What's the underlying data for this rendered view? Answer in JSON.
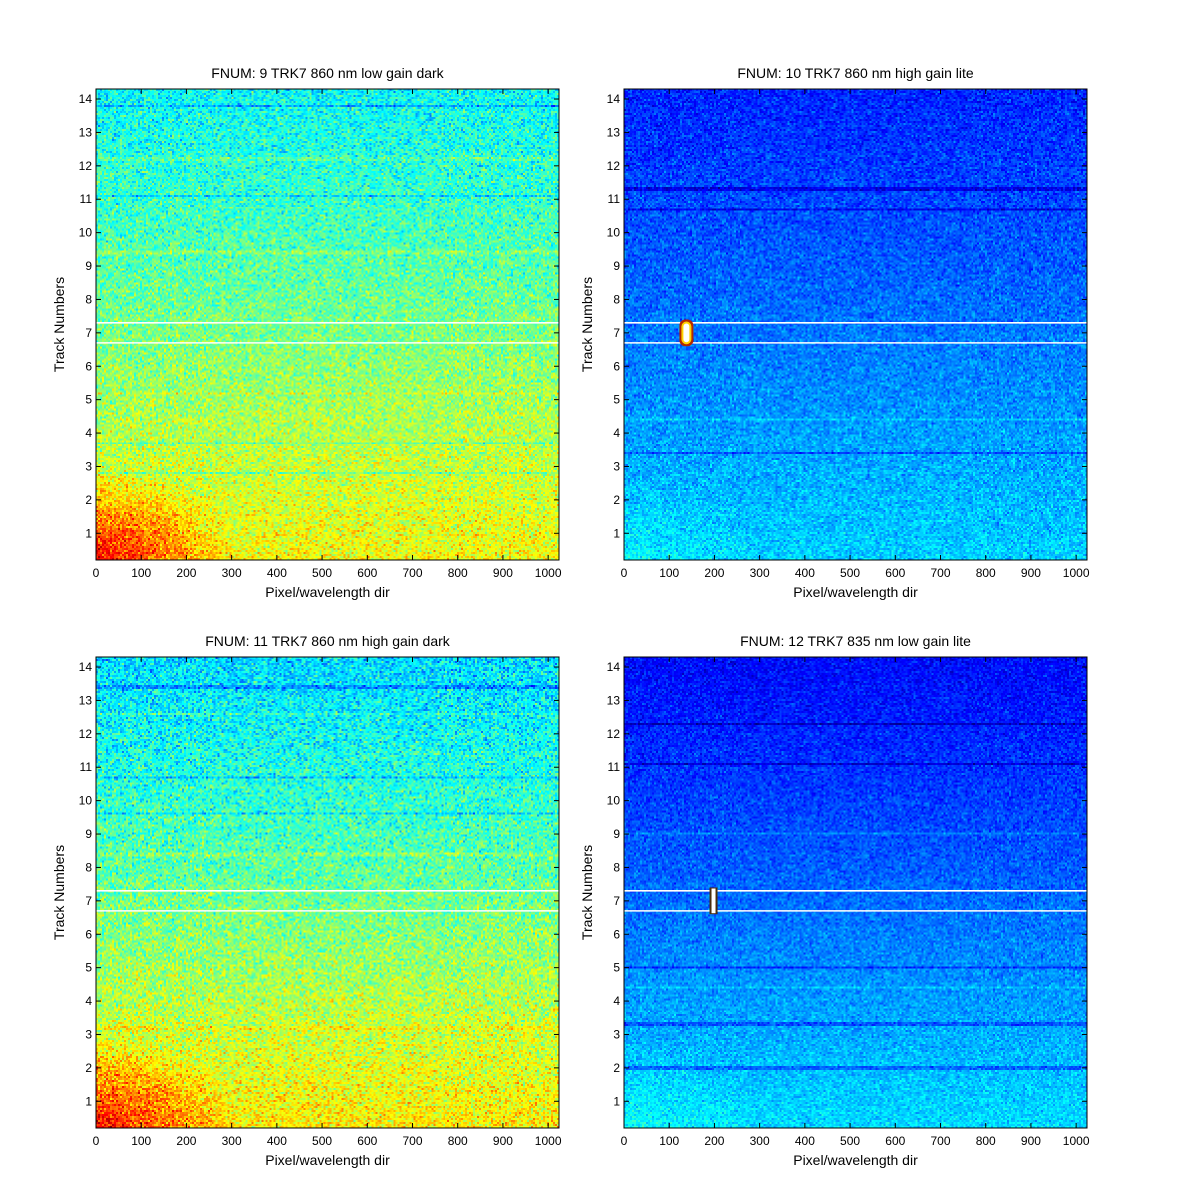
{
  "figure": {
    "background": "#ffffff",
    "colormap": "jet"
  },
  "chart_data": [
    {
      "type": "heatmap",
      "title": "FNUM: 9 TRK7 860 nm low gain dark",
      "xlabel": "Pixel/wavelength dir",
      "ylabel": "Track Numbers",
      "xlim": [
        0,
        1024
      ],
      "ylim": [
        0.2,
        14.3
      ],
      "xticks": [
        0,
        100,
        200,
        300,
        400,
        500,
        600,
        700,
        800,
        900,
        1000
      ],
      "yticks": [
        1,
        2,
        3,
        4,
        5,
        6,
        7,
        8,
        9,
        10,
        11,
        12,
        13,
        14
      ],
      "intensity_gradient": {
        "top": 0.38,
        "bottom": 0.62,
        "bottom_left_corner": 0.82
      },
      "noise_level": 0.07,
      "dark_streaks_at_track": [
        13.8,
        11.1,
        3.7,
        2.8
      ],
      "bright_streaks_at_track": [
        12.2,
        9.4,
        5.2
      ],
      "white_band_edges": [
        6.7,
        7.3
      ],
      "hot_spot": null
    },
    {
      "type": "heatmap",
      "title": "FNUM: 10 TRK7 860 nm high gain lite",
      "xlabel": "Pixel/wavelength dir",
      "ylabel": "Track Numbers",
      "xlim": [
        0,
        1024
      ],
      "ylim": [
        0.2,
        14.3
      ],
      "xticks": [
        0,
        100,
        200,
        300,
        400,
        500,
        600,
        700,
        800,
        900,
        1000
      ],
      "yticks": [
        1,
        2,
        3,
        4,
        5,
        6,
        7,
        8,
        9,
        10,
        11,
        12,
        13,
        14
      ],
      "intensity_gradient": {
        "top": 0.16,
        "bottom": 0.33,
        "bottom_left_corner": 0.36
      },
      "noise_level": 0.045,
      "dark_streaks_at_track": [
        11.3,
        10.7,
        3.4
      ],
      "bright_streaks_at_track": [
        4.4
      ],
      "white_band_edges": [
        6.7,
        7.3
      ],
      "hot_spot": {
        "x": 138,
        "track_min": 6.6,
        "track_max": 7.4,
        "shape": "pill"
      }
    },
    {
      "type": "heatmap",
      "title": "FNUM: 11 TRK7 860 nm high gain dark",
      "xlabel": "Pixel/wavelength dir",
      "ylabel": "Track Numbers",
      "xlim": [
        0,
        1024
      ],
      "ylim": [
        0.2,
        14.3
      ],
      "xticks": [
        0,
        100,
        200,
        300,
        400,
        500,
        600,
        700,
        800,
        900,
        1000
      ],
      "yticks": [
        1,
        2,
        3,
        4,
        5,
        6,
        7,
        8,
        9,
        10,
        11,
        12,
        13,
        14
      ],
      "intensity_gradient": {
        "top": 0.34,
        "bottom": 0.64,
        "bottom_left_corner": 0.82
      },
      "noise_level": 0.075,
      "dark_streaks_at_track": [
        13.4,
        10.7,
        9.6
      ],
      "bright_streaks_at_track": [
        12.6,
        8.4,
        3.2
      ],
      "white_band_edges": [
        6.7,
        7.3
      ],
      "hot_spot": null
    },
    {
      "type": "heatmap",
      "title": "FNUM: 12 TRK7 835 nm low gain lite",
      "xlabel": "Pixel/wavelength dir",
      "ylabel": "Track Numbers",
      "xlim": [
        0,
        1024
      ],
      "ylim": [
        0.2,
        14.3
      ],
      "xticks": [
        0,
        100,
        200,
        300,
        400,
        500,
        600,
        700,
        800,
        900,
        1000
      ],
      "yticks": [
        1,
        2,
        3,
        4,
        5,
        6,
        7,
        8,
        9,
        10,
        11,
        12,
        13,
        14
      ],
      "intensity_gradient": {
        "top": 0.13,
        "bottom": 0.34,
        "bottom_left_corner": 0.37
      },
      "noise_level": 0.04,
      "dark_streaks_at_track": [
        12.3,
        11.1,
        5.0,
        3.3,
        2.0
      ],
      "bright_streaks_at_track": [
        9.0,
        4.4
      ],
      "white_band_edges": [
        6.7,
        7.3
      ],
      "hot_spot": {
        "x": 198,
        "track_min": 6.6,
        "track_max": 7.4,
        "shape": "bar"
      }
    }
  ]
}
